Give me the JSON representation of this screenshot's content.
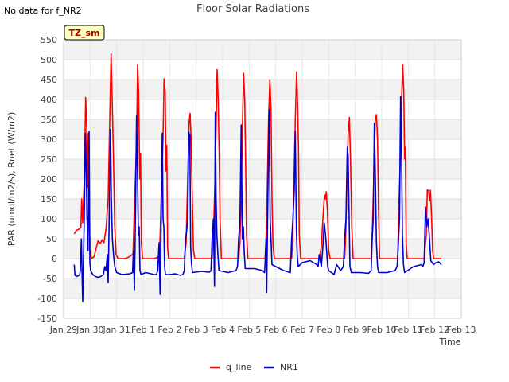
{
  "no_data_text": "No data for f_NR2",
  "chart_data": {
    "type": "line",
    "title": "Floor Solar Radiations",
    "xlabel": "Time",
    "ylabel": "PAR (umol/m2/s), Rnet (W/m2)",
    "badge": "TZ_sm",
    "xlim": [
      0,
      15
    ],
    "ylim": [
      -150,
      550
    ],
    "yticks": [
      -150,
      -100,
      -50,
      0,
      50,
      100,
      150,
      200,
      250,
      300,
      350,
      400,
      450,
      500,
      550
    ],
    "xtick_labels": [
      "Jan 29",
      "Jan 30",
      "Jan 31",
      "Feb 1",
      "Feb 2",
      "Feb 3",
      "Feb 4",
      "Feb 5",
      "Feb 6",
      "Feb 7",
      "Feb 8",
      "Feb 9",
      "Feb 10",
      "Feb 11",
      "Feb 12",
      "Feb 13"
    ],
    "legend_position": "bottom-center",
    "series": [
      {
        "name": "q_line",
        "color": "#ff0000",
        "points": [
          [
            0.4,
            62
          ],
          [
            0.45,
            68
          ],
          [
            0.5,
            72
          ],
          [
            0.55,
            73
          ],
          [
            0.6,
            75
          ],
          [
            0.65,
            78
          ],
          [
            0.68,
            150
          ],
          [
            0.72,
            90
          ],
          [
            0.78,
            200
          ],
          [
            0.83,
            405
          ],
          [
            0.87,
            330
          ],
          [
            0.9,
            180
          ],
          [
            0.93,
            315
          ],
          [
            0.96,
            110
          ],
          [
            1.0,
            20
          ],
          [
            1.05,
            0
          ],
          [
            1.15,
            5
          ],
          [
            1.22,
            25
          ],
          [
            1.3,
            45
          ],
          [
            1.38,
            38
          ],
          [
            1.45,
            47
          ],
          [
            1.52,
            40
          ],
          [
            1.6,
            75
          ],
          [
            1.68,
            150
          ],
          [
            1.74,
            350
          ],
          [
            1.79,
            515
          ],
          [
            1.84,
            380
          ],
          [
            1.88,
            250
          ],
          [
            1.93,
            80
          ],
          [
            1.98,
            10
          ],
          [
            2.05,
            0
          ],
          [
            2.3,
            0
          ],
          [
            2.4,
            2
          ],
          [
            2.55,
            8
          ],
          [
            2.62,
            12
          ],
          [
            2.68,
            150
          ],
          [
            2.75,
            280
          ],
          [
            2.79,
            488
          ],
          [
            2.83,
            420
          ],
          [
            2.87,
            200
          ],
          [
            2.9,
            265
          ],
          [
            2.93,
            40
          ],
          [
            2.98,
            0
          ],
          [
            3.4,
            0
          ],
          [
            3.55,
            3
          ],
          [
            3.62,
            12
          ],
          [
            3.68,
            160
          ],
          [
            3.75,
            300
          ],
          [
            3.79,
            452
          ],
          [
            3.83,
            420
          ],
          [
            3.86,
            220
          ],
          [
            3.89,
            285
          ],
          [
            3.92,
            30
          ],
          [
            3.96,
            0
          ],
          [
            4.55,
            0
          ],
          [
            4.62,
            40
          ],
          [
            4.68,
            200
          ],
          [
            4.73,
            340
          ],
          [
            4.77,
            365
          ],
          [
            4.81,
            300
          ],
          [
            4.85,
            160
          ],
          [
            4.9,
            20
          ],
          [
            4.95,
            0
          ],
          [
            5.6,
            0
          ],
          [
            5.65,
            60
          ],
          [
            5.7,
            170
          ],
          [
            5.75,
            330
          ],
          [
            5.79,
            475
          ],
          [
            5.83,
            400
          ],
          [
            5.87,
            250
          ],
          [
            5.9,
            100
          ],
          [
            5.95,
            0
          ],
          [
            6.6,
            0
          ],
          [
            6.65,
            40
          ],
          [
            6.7,
            160
          ],
          [
            6.75,
            350
          ],
          [
            6.79,
            466
          ],
          [
            6.83,
            400
          ],
          [
            6.87,
            220
          ],
          [
            6.9,
            60
          ],
          [
            6.95,
            0
          ],
          [
            7.6,
            0
          ],
          [
            7.64,
            60
          ],
          [
            7.68,
            170
          ],
          [
            7.73,
            350
          ],
          [
            7.78,
            450
          ],
          [
            7.82,
            380
          ],
          [
            7.86,
            150
          ],
          [
            7.9,
            30
          ],
          [
            7.95,
            0
          ],
          [
            8.6,
            0
          ],
          [
            8.64,
            50
          ],
          [
            8.68,
            170
          ],
          [
            8.74,
            350
          ],
          [
            8.79,
            470
          ],
          [
            8.83,
            380
          ],
          [
            8.86,
            280
          ],
          [
            8.89,
            60
          ],
          [
            8.94,
            0
          ],
          [
            9.65,
            0
          ],
          [
            9.72,
            30
          ],
          [
            9.78,
            100
          ],
          [
            9.84,
            160
          ],
          [
            9.88,
            150
          ],
          [
            9.91,
            168
          ],
          [
            9.95,
            120
          ],
          [
            10.0,
            20
          ],
          [
            10.05,
            0
          ],
          [
            10.6,
            0
          ],
          [
            10.64,
            60
          ],
          [
            10.68,
            170
          ],
          [
            10.73,
            310
          ],
          [
            10.78,
            355
          ],
          [
            10.82,
            250
          ],
          [
            10.87,
            80
          ],
          [
            10.92,
            0
          ],
          [
            11.6,
            0
          ],
          [
            11.65,
            80
          ],
          [
            11.7,
            200
          ],
          [
            11.75,
            345
          ],
          [
            11.8,
            362
          ],
          [
            11.84,
            300
          ],
          [
            11.88,
            120
          ],
          [
            11.92,
            0
          ],
          [
            12.6,
            0
          ],
          [
            12.64,
            110
          ],
          [
            12.7,
            250
          ],
          [
            12.75,
            400
          ],
          [
            12.79,
            488
          ],
          [
            12.83,
            420
          ],
          [
            12.86,
            250
          ],
          [
            12.89,
            280
          ],
          [
            12.92,
            40
          ],
          [
            12.96,
            0
          ],
          [
            13.6,
            0
          ],
          [
            13.68,
            60
          ],
          [
            13.72,
            173
          ],
          [
            13.77,
            170
          ],
          [
            13.8,
            145
          ],
          [
            13.84,
            172
          ],
          [
            13.88,
            100
          ],
          [
            13.92,
            20
          ],
          [
            13.96,
            0
          ],
          [
            14.25,
            0
          ]
        ]
      },
      {
        "name": "NR1",
        "color": "#0000cc",
        "points": [
          [
            0.4,
            -15
          ],
          [
            0.43,
            -42
          ],
          [
            0.5,
            -45
          ],
          [
            0.55,
            -43
          ],
          [
            0.6,
            -42
          ],
          [
            0.63,
            -30
          ],
          [
            0.67,
            50
          ],
          [
            0.7,
            -50
          ],
          [
            0.72,
            -108
          ],
          [
            0.74,
            -30
          ],
          [
            0.78,
            110
          ],
          [
            0.82,
            315
          ],
          [
            0.86,
            200
          ],
          [
            0.88,
            110
          ],
          [
            0.92,
            20
          ],
          [
            0.96,
            320
          ],
          [
            0.99,
            -10
          ],
          [
            1.02,
            -30
          ],
          [
            1.1,
            -40
          ],
          [
            1.2,
            -45
          ],
          [
            1.3,
            -47
          ],
          [
            1.4,
            -45
          ],
          [
            1.5,
            -40
          ],
          [
            1.55,
            -20
          ],
          [
            1.6,
            -30
          ],
          [
            1.65,
            10
          ],
          [
            1.68,
            -60
          ],
          [
            1.72,
            100
          ],
          [
            1.77,
            325
          ],
          [
            1.8,
            150
          ],
          [
            1.84,
            50
          ],
          [
            1.88,
            10
          ],
          [
            1.93,
            -20
          ],
          [
            2.0,
            -35
          ],
          [
            2.2,
            -40
          ],
          [
            2.5,
            -38
          ],
          [
            2.6,
            -35
          ],
          [
            2.63,
            20
          ],
          [
            2.67,
            -80
          ],
          [
            2.7,
            60
          ],
          [
            2.75,
            360
          ],
          [
            2.79,
            200
          ],
          [
            2.82,
            60
          ],
          [
            2.85,
            80
          ],
          [
            2.88,
            -30
          ],
          [
            2.92,
            -40
          ],
          [
            3.1,
            -35
          ],
          [
            3.3,
            -38
          ],
          [
            3.4,
            -40
          ],
          [
            3.5,
            -40
          ],
          [
            3.55,
            -30
          ],
          [
            3.6,
            40
          ],
          [
            3.64,
            -90
          ],
          [
            3.68,
            100
          ],
          [
            3.72,
            315
          ],
          [
            3.75,
            100
          ],
          [
            3.78,
            80
          ],
          [
            3.81,
            -20
          ],
          [
            3.84,
            -40
          ],
          [
            4.0,
            -40
          ],
          [
            4.2,
            -38
          ],
          [
            4.4,
            -42
          ],
          [
            4.5,
            -40
          ],
          [
            4.55,
            -30
          ],
          [
            4.6,
            50
          ],
          [
            4.64,
            70
          ],
          [
            4.68,
            100
          ],
          [
            4.72,
            318
          ],
          [
            4.76,
            310
          ],
          [
            4.79,
            30
          ],
          [
            4.82,
            -10
          ],
          [
            4.86,
            -35
          ],
          [
            5.2,
            -32
          ],
          [
            5.5,
            -34
          ],
          [
            5.56,
            -30
          ],
          [
            5.6,
            50
          ],
          [
            5.65,
            100
          ],
          [
            5.69,
            -70
          ],
          [
            5.72,
            368
          ],
          [
            5.75,
            150
          ],
          [
            5.78,
            60
          ],
          [
            5.82,
            10
          ],
          [
            5.86,
            -30
          ],
          [
            6.2,
            -35
          ],
          [
            6.5,
            -30
          ],
          [
            6.56,
            -20
          ],
          [
            6.6,
            50
          ],
          [
            6.65,
            90
          ],
          [
            6.7,
            336
          ],
          [
            6.74,
            50
          ],
          [
            6.78,
            80
          ],
          [
            6.81,
            20
          ],
          [
            6.85,
            -25
          ],
          [
            7.2,
            -25
          ],
          [
            7.5,
            -30
          ],
          [
            7.58,
            -35
          ],
          [
            7.64,
            50
          ],
          [
            7.66,
            -85
          ],
          [
            7.7,
            140
          ],
          [
            7.75,
            375
          ],
          [
            7.79,
            100
          ],
          [
            7.82,
            50
          ],
          [
            7.86,
            -15
          ],
          [
            8.0,
            -20
          ],
          [
            8.3,
            -30
          ],
          [
            8.55,
            -35
          ],
          [
            8.6,
            50
          ],
          [
            8.65,
            100
          ],
          [
            8.7,
            170
          ],
          [
            8.74,
            320
          ],
          [
            8.78,
            70
          ],
          [
            8.81,
            10
          ],
          [
            8.85,
            -20
          ],
          [
            9.0,
            -10
          ],
          [
            9.3,
            -5
          ],
          [
            9.55,
            -15
          ],
          [
            9.6,
            -20
          ],
          [
            9.64,
            10
          ],
          [
            9.68,
            -5
          ],
          [
            9.72,
            -20
          ],
          [
            9.78,
            30
          ],
          [
            9.83,
            90
          ],
          [
            9.88,
            60
          ],
          [
            9.92,
            20
          ],
          [
            9.96,
            -20
          ],
          [
            10.0,
            -30
          ],
          [
            10.1,
            -35
          ],
          [
            10.2,
            -40
          ],
          [
            10.3,
            -15
          ],
          [
            10.45,
            -30
          ],
          [
            10.55,
            -20
          ],
          [
            10.6,
            50
          ],
          [
            10.65,
            100
          ],
          [
            10.7,
            280
          ],
          [
            10.73,
            260
          ],
          [
            10.77,
            100
          ],
          [
            10.8,
            -20
          ],
          [
            10.85,
            -35
          ],
          [
            11.2,
            -35
          ],
          [
            11.5,
            -37
          ],
          [
            11.6,
            -30
          ],
          [
            11.64,
            50
          ],
          [
            11.68,
            100
          ],
          [
            11.72,
            340
          ],
          [
            11.76,
            200
          ],
          [
            11.8,
            40
          ],
          [
            11.84,
            -20
          ],
          [
            11.88,
            -35
          ],
          [
            12.2,
            -35
          ],
          [
            12.5,
            -30
          ],
          [
            12.58,
            -20
          ],
          [
            12.62,
            30
          ],
          [
            12.67,
            100
          ],
          [
            12.71,
            408
          ],
          [
            12.75,
            250
          ],
          [
            12.78,
            60
          ],
          [
            12.82,
            -15
          ],
          [
            12.86,
            -35
          ],
          [
            13.2,
            -20
          ],
          [
            13.5,
            -15
          ],
          [
            13.55,
            -20
          ],
          [
            13.6,
            -10
          ],
          [
            13.65,
            130
          ],
          [
            13.7,
            80
          ],
          [
            13.75,
            100
          ],
          [
            13.8,
            50
          ],
          [
            13.85,
            -5
          ],
          [
            13.95,
            -15
          ],
          [
            14.05,
            -10
          ],
          [
            14.15,
            -8
          ],
          [
            14.25,
            -15
          ]
        ]
      }
    ]
  }
}
